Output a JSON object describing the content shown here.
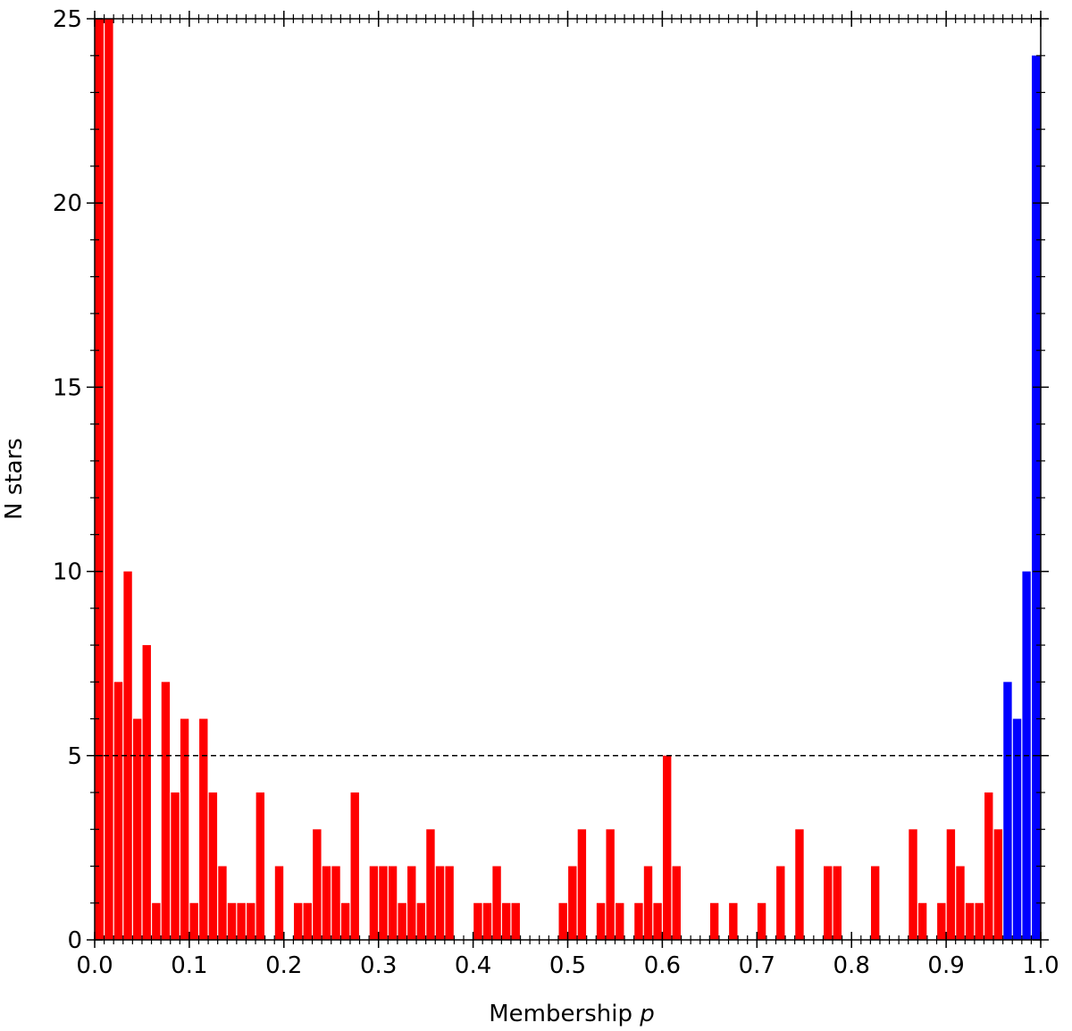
{
  "chart_data": {
    "type": "histogram",
    "xlabel": {
      "text": "Membership",
      "variable": "p"
    },
    "ylabel": "N stars",
    "bins": [
      0,
      0.01,
      0.02,
      0.03,
      0.04,
      0.05,
      0.06,
      0.07,
      0.08,
      0.09,
      0.1,
      0.11,
      0.12,
      0.13,
      0.14,
      0.15,
      0.16,
      0.17,
      0.18,
      0.19,
      0.2,
      0.21,
      0.22,
      0.23,
      0.24,
      0.25,
      0.26,
      0.27,
      0.28,
      0.29,
      0.3,
      0.31,
      0.32,
      0.33,
      0.34,
      0.35,
      0.36,
      0.37,
      0.38,
      0.39,
      0.4,
      0.41,
      0.42,
      0.43,
      0.44,
      0.45,
      0.46,
      0.47,
      0.48,
      0.49,
      0.5,
      0.51,
      0.52,
      0.53,
      0.54,
      0.55,
      0.56,
      0.57,
      0.58,
      0.59,
      0.6,
      0.61,
      0.62,
      0.63,
      0.64,
      0.65,
      0.66,
      0.67,
      0.68,
      0.69,
      0.7,
      0.71,
      0.72,
      0.73,
      0.74,
      0.75,
      0.76,
      0.77,
      0.78,
      0.79,
      0.8,
      0.81,
      0.82,
      0.83,
      0.84,
      0.85,
      0.86,
      0.87,
      0.88,
      0.89,
      0.9,
      0.91,
      0.92,
      0.93,
      0.94,
      0.95,
      0.96,
      0.97,
      0.98,
      0.99,
      1
    ],
    "counts": [
      25,
      25,
      7,
      10,
      6,
      8,
      1,
      7,
      4,
      6,
      1,
      6,
      4,
      2,
      1,
      1,
      1,
      4,
      0,
      2,
      0,
      1,
      1,
      3,
      2,
      2,
      1,
      4,
      0,
      2,
      2,
      2,
      1,
      2,
      1,
      3,
      2,
      2,
      0,
      0,
      1,
      1,
      2,
      1,
      1,
      0,
      0,
      0,
      0,
      1,
      2,
      3,
      0,
      1,
      3,
      1,
      0,
      1,
      2,
      1,
      5,
      2,
      0,
      0,
      0,
      1,
      0,
      1,
      0,
      0,
      1,
      0,
      2,
      0,
      3,
      0,
      0,
      2,
      2,
      0,
      0,
      0,
      2,
      0,
      0,
      0,
      3,
      1,
      0,
      1,
      3,
      2,
      1,
      1,
      4,
      3,
      7,
      6,
      10,
      24
    ],
    "colors": [
      "#ff0000",
      "#ff0000",
      "#ff0000",
      "#ff0000",
      "#ff0000",
      "#ff0000",
      "#ff0000",
      "#ff0000",
      "#ff0000",
      "#ff0000",
      "#ff0000",
      "#ff0000",
      "#ff0000",
      "#ff0000",
      "#ff0000",
      "#ff0000",
      "#ff0000",
      "#ff0000",
      "#ff0000",
      "#ff0000",
      "#ff0000",
      "#ff0000",
      "#ff0000",
      "#ff0000",
      "#ff0000",
      "#ff0000",
      "#ff0000",
      "#ff0000",
      "#ff0000",
      "#ff0000",
      "#ff0000",
      "#ff0000",
      "#ff0000",
      "#ff0000",
      "#ff0000",
      "#ff0000",
      "#ff0000",
      "#ff0000",
      "#ff0000",
      "#ff0000",
      "#ff0000",
      "#ff0000",
      "#ff0000",
      "#ff0000",
      "#ff0000",
      "#ff0000",
      "#ff0000",
      "#ff0000",
      "#ff0000",
      "#ff0000",
      "#ff0000",
      "#ff0000",
      "#ff0000",
      "#ff0000",
      "#ff0000",
      "#ff0000",
      "#ff0000",
      "#ff0000",
      "#ff0000",
      "#ff0000",
      "#ff0000",
      "#ff0000",
      "#ff0000",
      "#ff0000",
      "#ff0000",
      "#ff0000",
      "#ff0000",
      "#ff0000",
      "#ff0000",
      "#ff0000",
      "#ff0000",
      "#ff0000",
      "#ff0000",
      "#ff0000",
      "#ff0000",
      "#ff0000",
      "#ff0000",
      "#ff0000",
      "#ff0000",
      "#ff0000",
      "#ff0000",
      "#ff0000",
      "#ff0000",
      "#ff0000",
      "#ff0000",
      "#ff0000",
      "#ff0000",
      "#ff0000",
      "#ff0000",
      "#ff0000",
      "#ff0000",
      "#ff0000",
      "#ff0000",
      "#ff0000",
      "#ff0000",
      "#ff0000",
      "#0000ff",
      "#0000ff",
      "#0000ff",
      "#0000ff"
    ],
    "xlim": [
      0,
      1
    ],
    "ylim": [
      0,
      25
    ],
    "xticks": [
      {
        "value": 0,
        "label": "0.0"
      },
      0.1,
      0.2,
      0.3,
      0.4,
      0.5,
      0.6,
      0.7,
      0.8,
      0.9,
      {
        "value": 1,
        "label": "1.0"
      }
    ],
    "yticks": [
      0,
      5,
      10,
      15,
      20,
      25
    ],
    "yminorticks": [
      1,
      2,
      3,
      4,
      6,
      7,
      8,
      9,
      11,
      12,
      13,
      14,
      16,
      17,
      18,
      19,
      21,
      22,
      23,
      24
    ],
    "hline": 5
  }
}
